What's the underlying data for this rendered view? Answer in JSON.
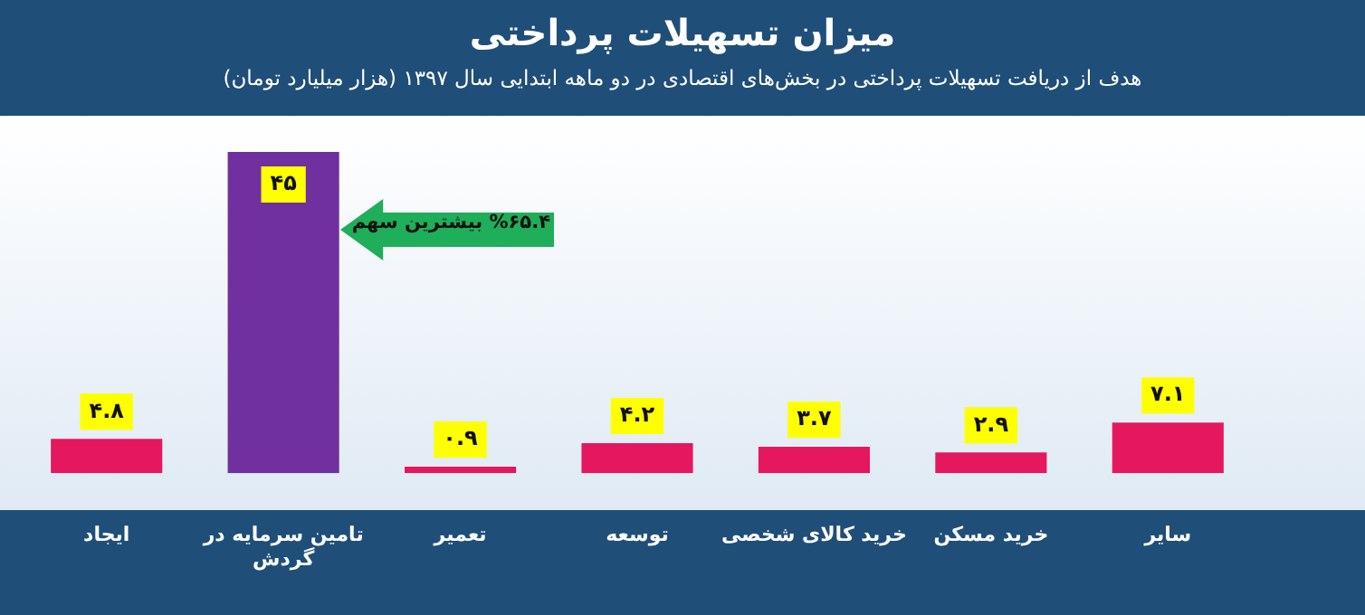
{
  "chart_data": {
    "type": "bar",
    "title": "میزان تسهیلات پرداختی",
    "subtitle": "هدف از دریافت تسهیلات پرداختی در بخش‌های اقتصادی در دو ماهه ابتدایی سال ۱۳۹۷ (هزار میلیارد تومان)",
    "categories": [
      "ایجاد",
      "تامین سرمایه در گردش",
      "تعمیر",
      "توسعه",
      "خرید کالای شخصی",
      "خرید مسکن",
      "سایر"
    ],
    "values": [
      4.8,
      45,
      0.9,
      4.2,
      3.7,
      2.9,
      7.1
    ],
    "colors": [
      "#e5175f",
      "#7030a0",
      "#e5175f",
      "#e5175f",
      "#e5175f",
      "#e5175f",
      "#e5175f"
    ],
    "value_labels": [
      "۴.۸",
      "۴۵",
      "۰.۹",
      "۴.۲",
      "۳.۷",
      "۲.۹",
      "۷.۱"
    ],
    "annotations": [
      "%۶۵.۴ بیشترین سهم"
    ],
    "grid": false,
    "legend": false
  }
}
